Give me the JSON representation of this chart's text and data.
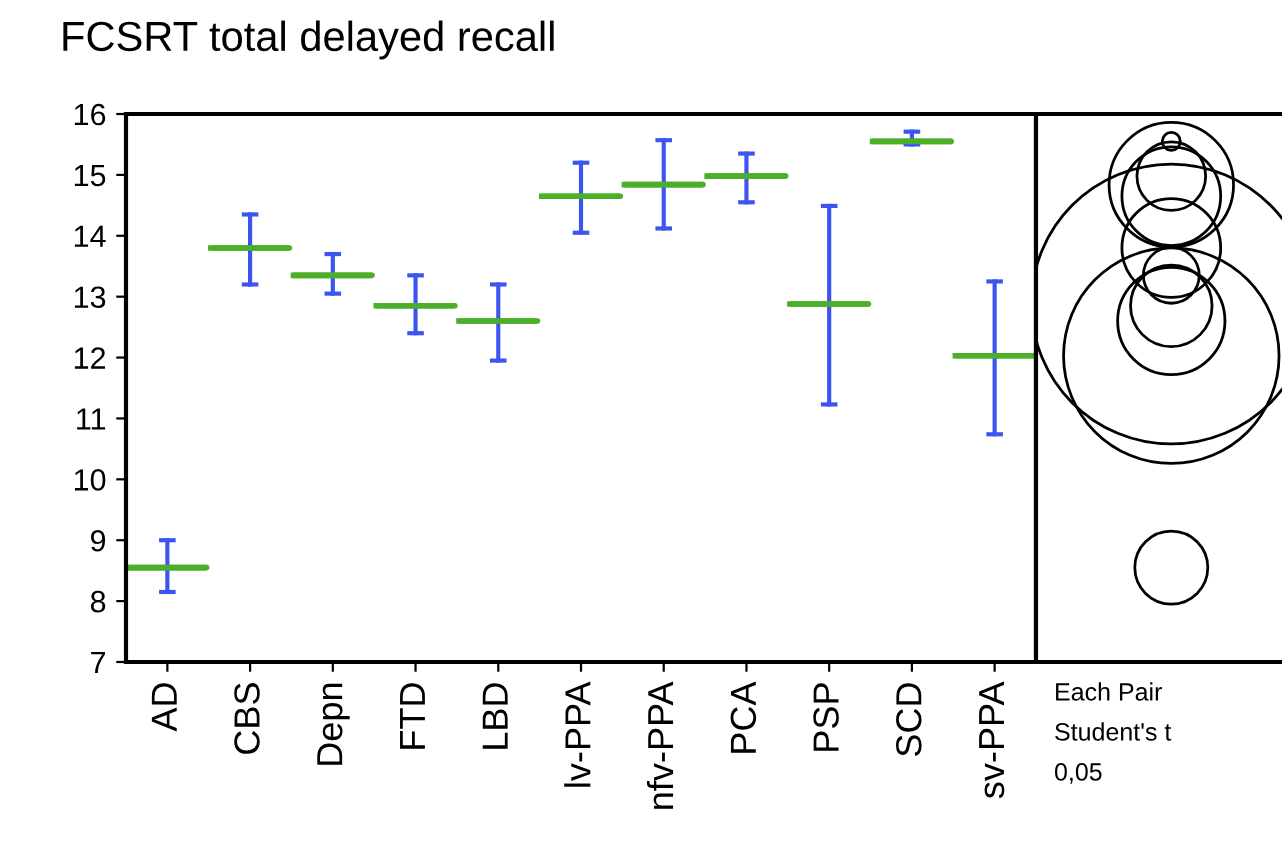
{
  "chart_data": {
    "type": "box",
    "title": "FCSRT total delayed recall",
    "categories": [
      "AD",
      "CBS",
      "Depn",
      "FTD",
      "LBD",
      "lv-PPA",
      "nfv-PPA",
      "PCA",
      "PSP",
      "SCD",
      "sv-PPA"
    ],
    "series": [
      {
        "color": "#4caf2a",
        "boxes": [
          {
            "low": 8.15,
            "q1": 8.55,
            "median": 8.55,
            "q3": 8.55,
            "high": 9.0
          },
          {
            "low": 13.2,
            "q1": 13.8,
            "median": 13.8,
            "q3": 13.8,
            "high": 14.35
          },
          {
            "low": 13.05,
            "q1": 13.35,
            "median": 13.35,
            "q3": 13.35,
            "high": 13.7
          },
          {
            "low": 12.4,
            "q1": 12.85,
            "median": 12.85,
            "q3": 12.85,
            "high": 13.35
          },
          {
            "low": 11.95,
            "q1": 12.6,
            "median": 12.6,
            "q3": 12.6,
            "high": 13.2
          },
          {
            "low": 14.05,
            "q1": 14.65,
            "median": 14.65,
            "q3": 14.65,
            "high": 15.2
          },
          {
            "low": 14.12,
            "q1": 14.84,
            "median": 14.84,
            "q3": 14.84,
            "high": 15.57
          },
          {
            "low": 14.55,
            "q1": 14.98,
            "median": 14.98,
            "q3": 14.98,
            "high": 15.35
          },
          {
            "low": 11.23,
            "q1": 12.88,
            "median": 12.88,
            "q3": 12.88,
            "high": 14.49
          },
          {
            "low": 15.5,
            "q1": 15.55,
            "median": 15.55,
            "q3": 15.55,
            "high": 15.71
          },
          {
            "low": 10.74,
            "q1": 12.03,
            "median": 12.03,
            "q3": 12.03,
            "high": 13.25
          }
        ]
      }
    ],
    "ylim": [
      7,
      16
    ],
    "yticks": [
      7,
      8,
      9,
      10,
      11,
      12,
      13,
      14,
      15,
      16
    ],
    "annotations": [
      "Each Pair",
      "Student's t",
      "0,05"
    ]
  }
}
